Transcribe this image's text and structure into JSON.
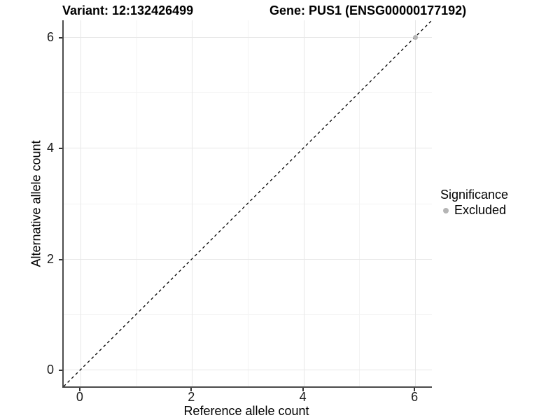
{
  "titles": {
    "variant": "Variant: 12:132426499",
    "gene": "Gene: PUS1 (ENSG00000177192)"
  },
  "chart_data": {
    "type": "scatter",
    "title": "Variant: 12:132426499  Gene: PUS1 (ENSG00000177192)",
    "xlabel": "Reference allele count",
    "ylabel": "Alternative allele count",
    "xlim": [
      -0.3,
      6.3
    ],
    "ylim": [
      -0.3,
      6.3
    ],
    "x_ticks": [
      0,
      2,
      4,
      6
    ],
    "y_ticks": [
      0,
      2,
      4,
      6
    ],
    "x_minor": [
      1,
      3,
      5
    ],
    "y_minor": [
      1,
      3,
      5
    ],
    "grid": "major and minor, light gray on white",
    "identity_line": {
      "type": "dashed",
      "x1": -0.3,
      "y1": -0.3,
      "x2": 6.3,
      "y2": 6.3,
      "color": "#000000"
    },
    "series": [
      {
        "name": "Excluded",
        "color": "#b5b5b5",
        "points": [
          [
            6,
            6
          ]
        ]
      }
    ],
    "legend": {
      "title": "Significance",
      "position": "right",
      "items": [
        {
          "label": "Excluded",
          "color": "#b5b5b5",
          "marker": "circle"
        }
      ]
    }
  },
  "colors": {
    "axis_line": "#4b4b4b",
    "tick": "#333333",
    "grid_major": "#e7e7e7",
    "grid_minor": "#f3f3f3",
    "point": "#b5b5b5",
    "background": "#ffffff"
  }
}
